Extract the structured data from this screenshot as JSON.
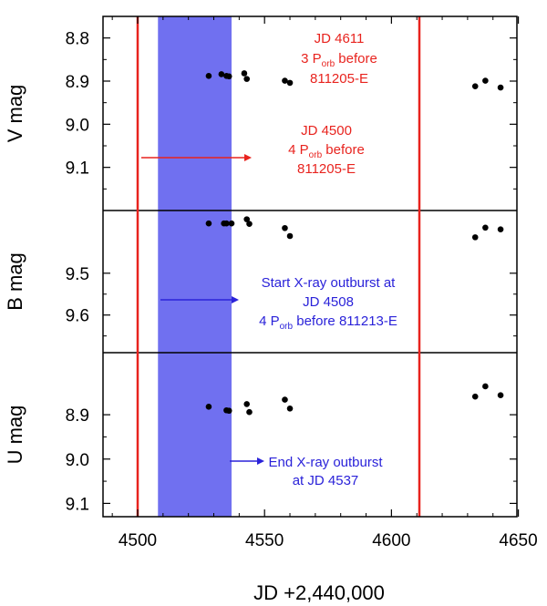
{
  "chart_data": {
    "type": "scatter",
    "xlabel": "JD +2,440,000",
    "xlim": [
      4485,
      4650
    ],
    "xticks": [
      "4500",
      "4550",
      "4600",
      "4650"
    ],
    "xtick_values": [
      4500,
      4550,
      4600,
      4650
    ],
    "colors": {
      "points": "#000000",
      "red": "#e8231e",
      "blue": "#2a22d9",
      "shade": "#7070f0"
    },
    "vertical_lines": [
      4500,
      4611
    ],
    "shaded_interval": [
      4508,
      4537
    ],
    "panels": [
      {
        "ylabel": "V mag",
        "ylim": [
          8.75,
          9.2
        ],
        "yticks": [
          8.8,
          8.9,
          9.0,
          9.1
        ],
        "ytick_labels": [
          "8.8",
          "8.9",
          "9.0",
          "9.1"
        ],
        "points": [
          {
            "x": 4528,
            "y": 8.888
          },
          {
            "x": 4533,
            "y": 8.884
          },
          {
            "x": 4535,
            "y": 8.888
          },
          {
            "x": 4536,
            "y": 8.889
          },
          {
            "x": 4542,
            "y": 8.882
          },
          {
            "x": 4543,
            "y": 8.895
          },
          {
            "x": 4558,
            "y": 8.899
          },
          {
            "x": 4560,
            "y": 8.904
          },
          {
            "x": 4633,
            "y": 8.912
          },
          {
            "x": 4637,
            "y": 8.899
          },
          {
            "x": 4643,
            "y": 8.915
          }
        ]
      },
      {
        "ylabel": "B mag",
        "ylim": [
          9.35,
          9.69
        ],
        "yticks": [
          9.5,
          9.6
        ],
        "ytick_labels": [
          "9.5",
          "9.6"
        ],
        "points": [
          {
            "x": 4528,
            "y": 9.381
          },
          {
            "x": 4534,
            "y": 9.381
          },
          {
            "x": 4535,
            "y": 9.381
          },
          {
            "x": 4537,
            "y": 9.381
          },
          {
            "x": 4543,
            "y": 9.371
          },
          {
            "x": 4544,
            "y": 9.382
          },
          {
            "x": 4558,
            "y": 9.392
          },
          {
            "x": 4560,
            "y": 9.411
          },
          {
            "x": 4633,
            "y": 9.414
          },
          {
            "x": 4637,
            "y": 9.391
          },
          {
            "x": 4643,
            "y": 9.395
          }
        ]
      },
      {
        "ylabel": "U mag",
        "ylim": [
          8.76,
          9.13
        ],
        "yticks": [
          8.9,
          9.0,
          9.1
        ],
        "ytick_labels": [
          "8.9",
          "9.0",
          "9.1"
        ],
        "points": [
          {
            "x": 4528,
            "y": 8.882
          },
          {
            "x": 4535,
            "y": 8.89
          },
          {
            "x": 4536,
            "y": 8.891
          },
          {
            "x": 4543,
            "y": 8.876
          },
          {
            "x": 4544,
            "y": 8.894
          },
          {
            "x": 4558,
            "y": 8.866
          },
          {
            "x": 4560,
            "y": 8.886
          },
          {
            "x": 4633,
            "y": 8.859
          },
          {
            "x": 4637,
            "y": 8.836
          },
          {
            "x": 4643,
            "y": 8.856
          }
        ]
      }
    ],
    "annotations": [
      {
        "lines": [
          [
            "JD 4611"
          ],
          [
            "3 P",
            "orb",
            " before"
          ],
          [
            "811205-E"
          ]
        ],
        "color": "red"
      },
      {
        "lines": [
          [
            "JD 4500"
          ],
          [
            "4 P",
            "orb",
            " before"
          ],
          [
            "811205-E"
          ]
        ],
        "color": "red"
      },
      {
        "lines": [
          [
            "Start X-ray outburst at"
          ],
          [
            "JD 4508"
          ],
          [
            "4 P",
            "orb",
            " before 811213-E"
          ]
        ],
        "color": "blue"
      },
      {
        "lines": [
          [
            "End X-ray outburst"
          ],
          [
            "at JD 4537"
          ]
        ],
        "color": "blue"
      }
    ]
  }
}
